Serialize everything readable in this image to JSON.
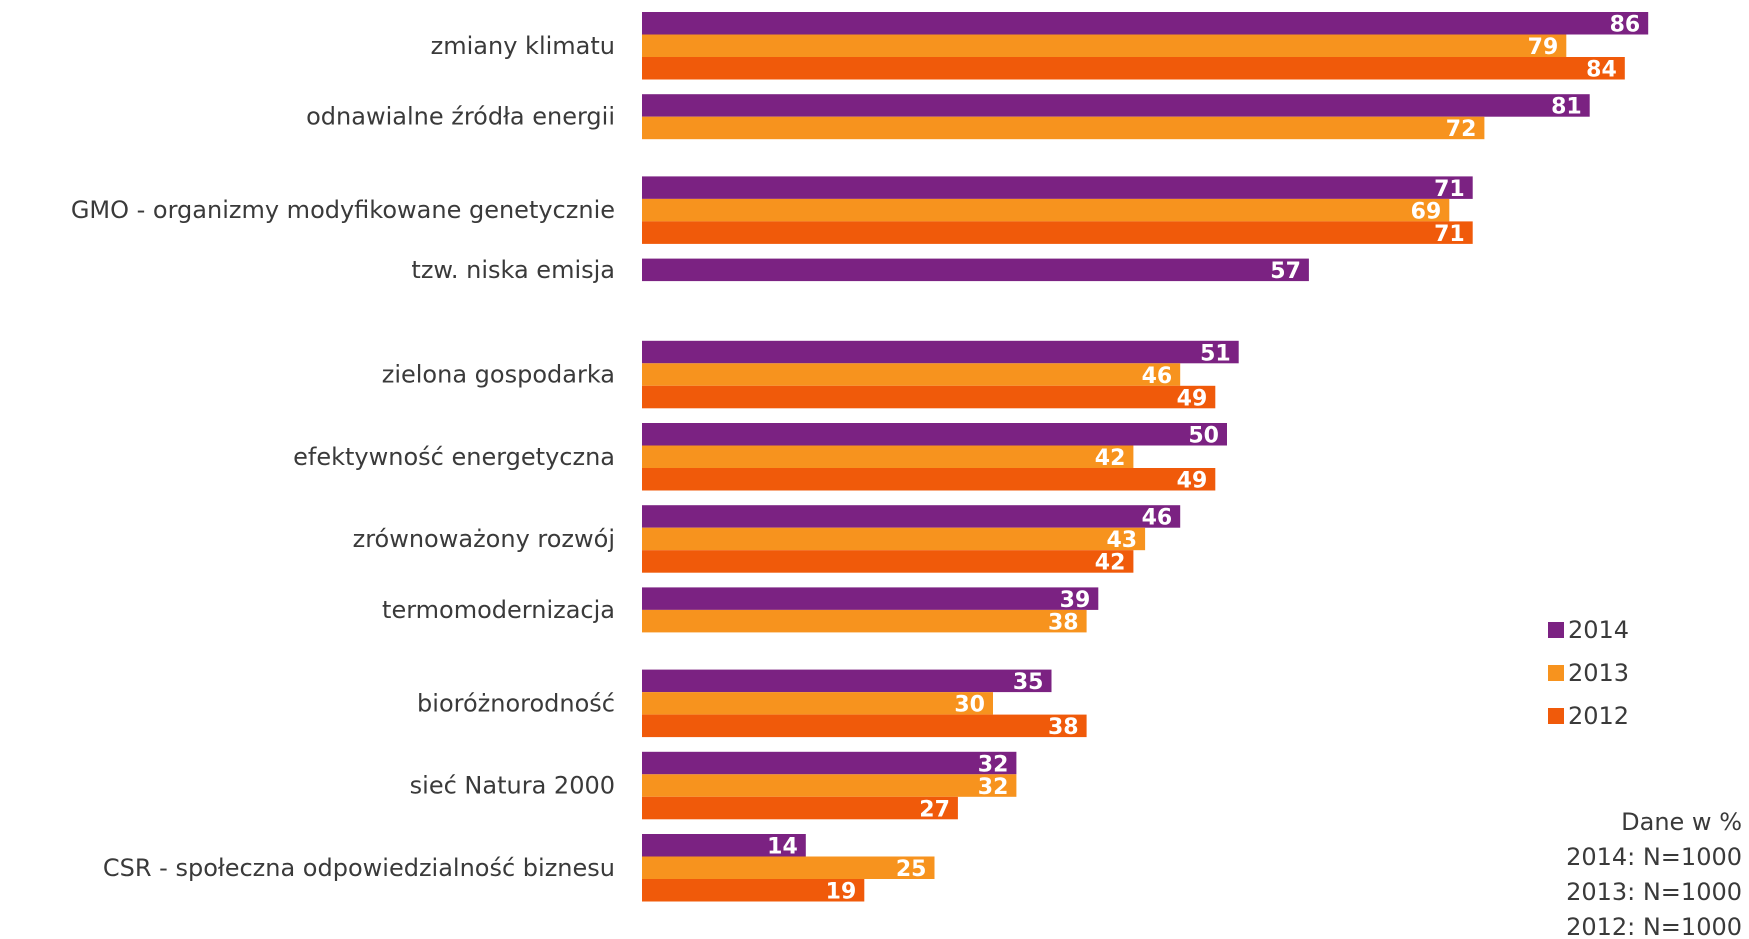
{
  "chart_data": {
    "type": "bar",
    "orientation": "horizontal",
    "categories": [
      "zmiany klimatu",
      "odnawialne źródła energii",
      "GMO - organizmy modyfikowane genetycznie",
      "tzw. niska emisja",
      "zielona gospodarka",
      "efektywność energetyczna",
      "zrównoważony rozwój",
      "termomodernizacja",
      "bioróżnorodność",
      "sieć Natura 2000",
      "CSR - społeczna odpowiedzialność biznesu"
    ],
    "series": [
      {
        "name": "2014",
        "color": "#7b2282",
        "values": [
          86,
          81,
          71,
          57,
          51,
          50,
          46,
          39,
          35,
          32,
          14
        ]
      },
      {
        "name": "2013",
        "color": "#f7931e",
        "values": [
          79,
          72,
          69,
          null,
          46,
          42,
          43,
          38,
          30,
          32,
          25
        ]
      },
      {
        "name": "2012",
        "color": "#f05a0a",
        "values": [
          84,
          null,
          71,
          null,
          49,
          49,
          42,
          null,
          38,
          27,
          19
        ]
      }
    ],
    "xlim": [
      0,
      100
    ],
    "grid": false,
    "legend_position": "right",
    "notes": [
      "Dane w %",
      "2014: N=1000",
      "2013: N=1000",
      "2012: N=1000"
    ]
  }
}
